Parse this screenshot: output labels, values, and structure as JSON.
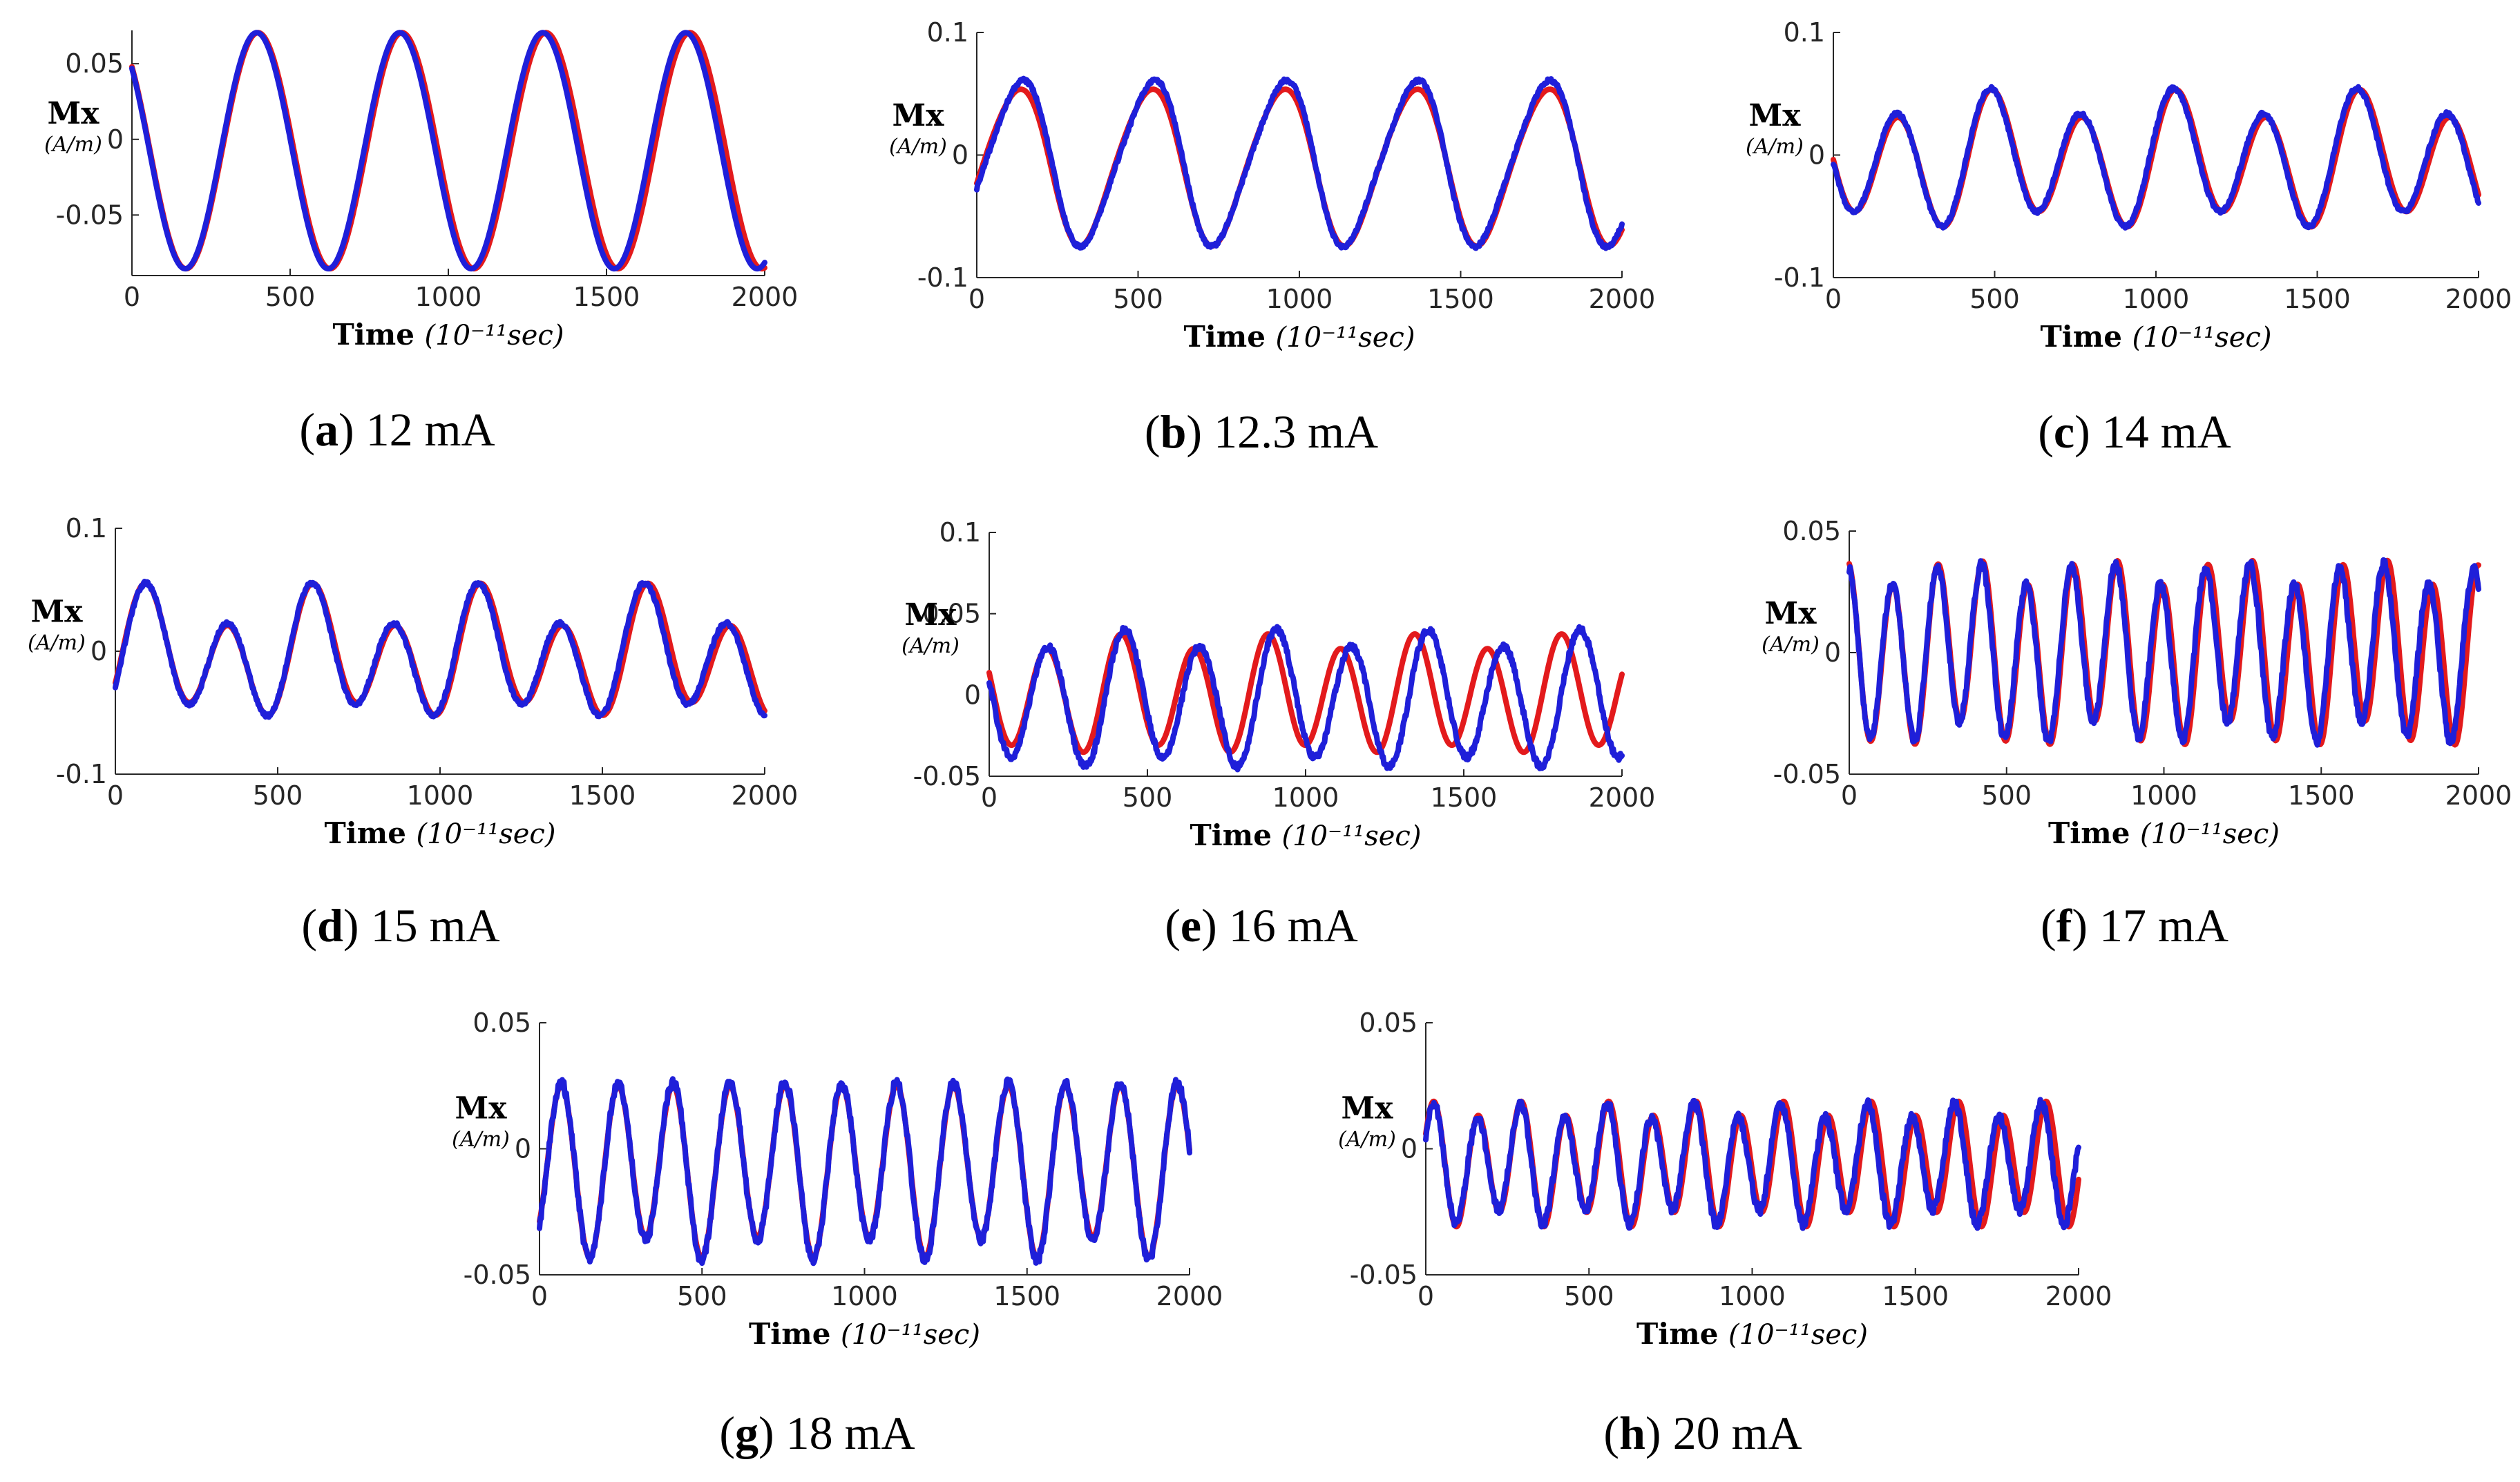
{
  "colors": {
    "simulated": "#e31a1c",
    "measured": "#1f1fd9"
  },
  "chart_data": [
    {
      "id": "a",
      "caption_letter": "a",
      "caption_text": " 12 mA",
      "type": "line",
      "ylabel": "Mx",
      "yunit": "(A/m)",
      "xlabel": "Time",
      "xunit": "(10⁻¹¹sec)",
      "xlim": [
        0,
        2000
      ],
      "ylim": [
        -0.09,
        0.072
      ],
      "xticks": [
        0,
        500,
        1000,
        1500,
        2000
      ],
      "xtick_labels": [
        "0",
        "500",
        "1000",
        "1500",
        "2000"
      ],
      "yticks": [
        -0.05,
        0,
        0.05
      ],
      "ytick_labels": [
        "-0.05",
        "0",
        "0.05"
      ],
      "series": [
        {
          "name": "red",
          "offset": -0.0075,
          "comps": [
            {
              "a": 0.078,
              "period": 455,
              "phase": 0.78
            }
          ],
          "noise": 0
        },
        {
          "name": "blue",
          "offset": -0.0075,
          "comps": [
            {
              "a": 0.078,
              "period": 452,
              "phase": 0.8
            }
          ],
          "noise": 0
        }
      ]
    },
    {
      "id": "b",
      "caption_letter": "b",
      "caption_text": " 12.3 mA",
      "type": "line",
      "ylabel": "Mx",
      "yunit": "(A/m)",
      "xlabel": "Time",
      "xunit": "(10⁻¹¹sec)",
      "xlim": [
        0,
        2000
      ],
      "ylim": [
        -0.1,
        0.1
      ],
      "xticks": [
        0,
        500,
        1000,
        1500,
        2000
      ],
      "xtick_labels": [
        "0",
        "500",
        "1000",
        "1500",
        "2000"
      ],
      "yticks": [
        -0.1,
        0,
        0.1
      ],
      "ytick_labels": [
        "-0.1",
        "0",
        "0.1"
      ],
      "series": [
        {
          "name": "red",
          "offset": -0.008,
          "comps": [
            {
              "a": 0.063,
              "period": 410,
              "phase": -1.9
            },
            {
              "a": 0.006,
              "period": 205,
              "phase": 0.5
            }
          ],
          "noise": 0
        },
        {
          "name": "blue",
          "offset": -0.006,
          "comps": [
            {
              "a": 0.066,
              "period": 408,
              "phase": -2.0
            },
            {
              "a": 0.008,
              "period": 204,
              "phase": 0.6
            }
          ],
          "noise": 0.0015
        }
      ]
    },
    {
      "id": "c",
      "caption_letter": "c",
      "caption_text": " 14 mA",
      "type": "line",
      "ylabel": "Mx",
      "yunit": "(A/m)",
      "xlabel": "Time",
      "xunit": "(10⁻¹¹sec)",
      "xlim": [
        0,
        2000
      ],
      "ylim": [
        -0.1,
        0.1
      ],
      "xticks": [
        0,
        500,
        1000,
        1500,
        2000
      ],
      "xtick_labels": [
        "0",
        "500",
        "1000",
        "1500",
        "2000"
      ],
      "yticks": [
        -0.1,
        0,
        0.1
      ],
      "ytick_labels": [
        "-0.1",
        "0",
        "0.1"
      ],
      "series": [
        {
          "name": "red",
          "offset": -0.005,
          "comps": [
            {
              "a": 0.047,
              "period": 285,
              "phase": 1.8
            },
            {
              "a": 0.013,
              "period": 570,
              "phase": 0.4
            }
          ],
          "noise": 0
        },
        {
          "name": "blue",
          "offset": -0.004,
          "comps": [
            {
              "a": 0.048,
              "period": 284,
              "phase": 1.85
            },
            {
              "a": 0.012,
              "period": 568,
              "phase": 0.4
            }
          ],
          "noise": 0.0015
        }
      ]
    },
    {
      "id": "d",
      "caption_letter": "d",
      "caption_text": " 15 mA",
      "type": "line",
      "ylabel": "Mx",
      "yunit": "(A/m)",
      "xlabel": "Time",
      "xunit": "(10⁻¹¹sec)",
      "xlim": [
        0,
        2000
      ],
      "ylim": [
        -0.1,
        0.1
      ],
      "xticks": [
        0,
        500,
        1000,
        1500,
        2000
      ],
      "xtick_labels": [
        "0",
        "500",
        "1000",
        "1500",
        "2000"
      ],
      "yticks": [
        -0.1,
        0,
        0.1
      ],
      "ytick_labels": [
        "-0.1",
        "0",
        "0.1"
      ],
      "series": [
        {
          "name": "red",
          "offset": -0.004,
          "comps": [
            {
              "a": 0.042,
              "period": 258,
              "phase": -2.2
            },
            {
              "a": 0.018,
              "period": 516,
              "phase": -1.4
            }
          ],
          "noise": 0
        },
        {
          "name": "blue",
          "offset": -0.004,
          "comps": [
            {
              "a": 0.043,
              "period": 256,
              "phase": -2.25
            },
            {
              "a": 0.017,
              "period": 512,
              "phase": -1.4
            }
          ],
          "noise": 0.0015
        }
      ]
    },
    {
      "id": "e",
      "caption_letter": "e",
      "caption_text": " 16 mA",
      "type": "line",
      "ylabel": "Mx",
      "yunit": "(A/m)",
      "xlabel": "Time",
      "xunit": "(10⁻¹¹sec)",
      "xlim": [
        0,
        2000
      ],
      "ylim": [
        -0.05,
        0.1
      ],
      "xticks": [
        0,
        500,
        1000,
        1500,
        2000
      ],
      "xtick_labels": [
        "0",
        "500",
        "1000",
        "1500",
        "2000"
      ],
      "yticks": [
        -0.05,
        0,
        0.05,
        0.1
      ],
      "ytick_labels": [
        "-0.05",
        "0",
        "0.05",
        "0.1"
      ],
      "series": [
        {
          "name": "red",
          "offset": 0.0,
          "comps": [
            {
              "a": 0.033,
              "period": 232,
              "phase": 1.3
            },
            {
              "a": 0.005,
              "period": 464,
              "phase": 0.2
            }
          ],
          "noise": 0
        },
        {
          "name": "blue",
          "offset": -0.003,
          "comps": [
            {
              "a": 0.038,
              "period": 240,
              "phase": 1.4
            },
            {
              "a": 0.006,
              "period": 480,
              "phase": 0.2
            }
          ],
          "noise": 0.002
        }
      ]
    },
    {
      "id": "f",
      "caption_letter": "f",
      "caption_text": " 17 mA",
      "type": "line",
      "ylabel": "Mx",
      "yunit": "(A/m)",
      "xlabel": "Time",
      "xunit": "(10⁻¹¹sec)",
      "xlim": [
        0,
        2000
      ],
      "ylim": [
        -0.05,
        0.05
      ],
      "xticks": [
        0,
        500,
        1000,
        1500,
        2000
      ],
      "xtick_labels": [
        "0",
        "500",
        "1000",
        "1500",
        "2000"
      ],
      "yticks": [
        -0.05,
        0,
        0.05
      ],
      "ytick_labels": [
        "-0.05",
        "0",
        "0.05"
      ],
      "series": [
        {
          "name": "red",
          "offset": 0.0,
          "comps": [
            {
              "a": 0.034,
              "period": 143,
              "phase": 0.2
            },
            {
              "a": 0.006,
              "period": 430,
              "phase": 1.0
            }
          ],
          "noise": 0
        },
        {
          "name": "blue",
          "offset": 0.0,
          "comps": [
            {
              "a": 0.033,
              "period": 142,
              "phase": 0.2
            },
            {
              "a": 0.005,
              "period": 428,
              "phase": 1.0
            }
          ],
          "noise": 0.002
        }
      ]
    },
    {
      "id": "g",
      "caption_letter": "g",
      "caption_text": " 18 mA",
      "type": "line",
      "ylabel": "Mx",
      "yunit": "(A/m)",
      "xlabel": "Time",
      "xunit": "(10⁻¹¹sec)",
      "xlim": [
        0,
        2000
      ],
      "ylim": [
        -0.05,
        0.05
      ],
      "xticks": [
        0,
        500,
        1000,
        1500,
        2000
      ],
      "xtick_labels": [
        "0",
        "500",
        "1000",
        "1500",
        "2000"
      ],
      "yticks": [
        -0.05,
        0,
        0.05
      ],
      "ytick_labels": [
        "-0.05",
        "0",
        "0.05"
      ],
      "series": [
        {
          "name": "red",
          "offset": -0.007,
          "comps": [
            {
              "a": 0.032,
              "period": 172,
              "phase": -2.5
            },
            {
              "a": 0.004,
              "period": 344,
              "phase": 0.3
            }
          ],
          "noise": 0
        },
        {
          "name": "blue",
          "offset": -0.007,
          "comps": [
            {
              "a": 0.033,
              "period": 172,
              "phase": -2.5
            },
            {
              "a": 0.004,
              "period": 344,
              "phase": 0.3
            }
          ],
          "noise": 0.002
        }
      ]
    },
    {
      "id": "h",
      "caption_letter": "h",
      "caption_text": " 20 mA",
      "type": "line",
      "ylabel": "Mx",
      "yunit": "(A/m)",
      "xlabel": "Time",
      "xunit": "(10⁻¹¹sec)",
      "xlim": [
        0,
        2000
      ],
      "ylim": [
        -0.05,
        0.05
      ],
      "xticks": [
        0,
        500,
        1000,
        1500,
        2000
      ],
      "xtick_labels": [
        "0",
        "500",
        "1000",
        "1500",
        "2000"
      ],
      "yticks": [
        -0.05,
        0,
        0.05
      ],
      "ytick_labels": [
        "-0.05",
        "0",
        "0.05"
      ],
      "series": [
        {
          "name": "red",
          "offset": -0.006,
          "comps": [
            {
              "a": 0.022,
              "period": 134,
              "phase": -1.2
            },
            {
              "a": 0.004,
              "period": 268,
              "phase": 0.2
            }
          ],
          "noise": 0
        },
        {
          "name": "blue",
          "offset": -0.006,
          "comps": [
            {
              "a": 0.021,
              "period": 133,
              "phase": -1.2
            },
            {
              "a": 0.004,
              "period": 266,
              "phase": 0.2
            }
          ],
          "noise": 0.002
        }
      ]
    }
  ]
}
